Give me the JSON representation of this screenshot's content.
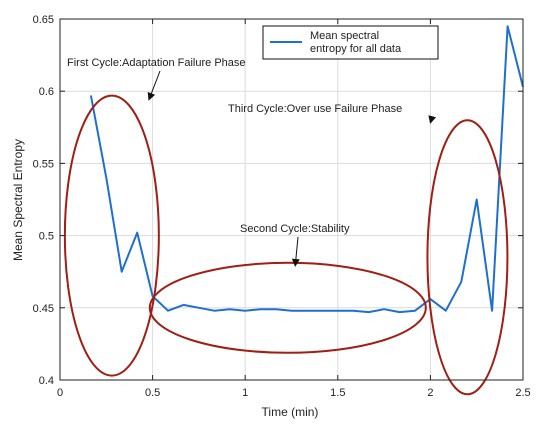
{
  "chart_data": {
    "type": "line",
    "xlabel": "Time (min)",
    "ylabel": "Mean Spectral Entropy",
    "xlim": [
      0,
      2.5
    ],
    "ylim": [
      0.4,
      0.65
    ],
    "xticks": [
      0,
      0.5,
      1,
      1.5,
      2,
      2.5
    ],
    "xtick_labels": [
      "0",
      "0.5",
      "1",
      "1.5",
      "2",
      "2.5"
    ],
    "yticks": [
      0.4,
      0.45,
      0.5,
      0.55,
      0.6,
      0.65
    ],
    "ytick_labels": [
      "0.4",
      "0.45",
      "0.5",
      "0.55",
      "0.6",
      "0.65"
    ],
    "grid": true,
    "legend_position": "top-right",
    "series": [
      {
        "name": "Mean spectral entropy for all data",
        "color": "#1f6fd1",
        "x": [
          0.167,
          0.25,
          0.333,
          0.417,
          0.5,
          0.583,
          0.667,
          0.75,
          0.833,
          0.917,
          1.0,
          1.083,
          1.167,
          1.25,
          1.333,
          1.417,
          1.5,
          1.583,
          1.667,
          1.75,
          1.833,
          1.917,
          2.0,
          2.083,
          2.167,
          2.25,
          2.333,
          2.417,
          2.5
        ],
        "values": [
          0.597,
          0.54,
          0.475,
          0.502,
          0.458,
          0.448,
          0.452,
          0.45,
          0.448,
          0.449,
          0.448,
          0.449,
          0.449,
          0.448,
          0.448,
          0.448,
          0.448,
          0.448,
          0.447,
          0.449,
          0.447,
          0.448,
          0.456,
          0.448,
          0.468,
          0.525,
          0.448,
          0.645,
          0.603
        ]
      }
    ],
    "annotations": [
      {
        "text": "First Cycle:Adaptation Failure Phase",
        "ellipse_center": [
          0.28,
          0.5
        ],
        "target": [
          0.48,
          0.594
        ]
      },
      {
        "text": "Second Cycle:Stability",
        "ellipse_center": [
          1.23,
          0.45
        ],
        "target": [
          1.27,
          0.479
        ]
      },
      {
        "text": "Third Cycle:Over use Failure Phase",
        "ellipse_center": [
          2.2,
          0.485
        ],
        "target": [
          2.0,
          0.578
        ]
      }
    ],
    "colors": {
      "line": "#1f6fd1",
      "ellipse": "#a01e14",
      "axis": "#222222",
      "grid": "#dcdcdc"
    }
  }
}
